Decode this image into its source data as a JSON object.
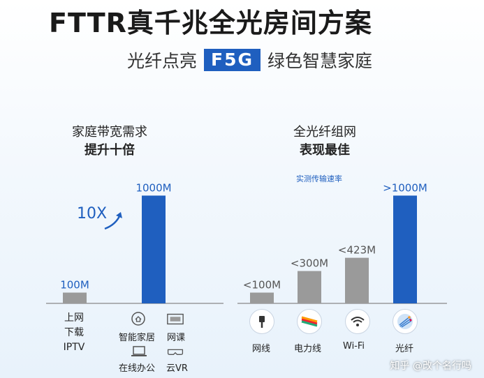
{
  "title": "FTTR真千兆全光房间方案",
  "subtitle": {
    "before": "光纤点亮",
    "badge": "F5G",
    "after": "绿色智慧家庭"
  },
  "colors": {
    "bar_gray": "#9a9a9a",
    "bar_blue": "#1f5fbf",
    "label_blue": "#1f5fbf",
    "axis": "#888888"
  },
  "chart_data": [
    {
      "type": "bar",
      "title": "家庭带宽需求",
      "subtitle": "提升十倍",
      "categories": [
        "上网 下载 IPTV",
        "智能家居 网课 在线办公 云VR"
      ],
      "values": [
        100,
        1000
      ],
      "value_labels": [
        "100M",
        "1000M"
      ],
      "unit": "Mbps",
      "annotation": "10X",
      "ylim": [
        0,
        1100
      ],
      "grid": false
    },
    {
      "type": "bar",
      "title": "全光纤组网",
      "subtitle": "表现最佳",
      "note": "实测传输速率",
      "categories": [
        "网线",
        "电力线",
        "Wi-Fi",
        "光纤"
      ],
      "values": [
        100,
        300,
        423,
        1000
      ],
      "value_labels": [
        "<100M",
        "<300M",
        "<423M",
        ">1000M"
      ],
      "unit": "Mbps",
      "ylim": [
        0,
        1100
      ],
      "grid": false
    }
  ],
  "left_categories": {
    "a": {
      "line1": "上网",
      "line2": "下载",
      "line3": "IPTV"
    },
    "b": {
      "icons": [
        {
          "icon": "smart-home-icon",
          "label": "智能家居"
        },
        {
          "icon": "online-class-icon",
          "label": "网课"
        },
        {
          "icon": "laptop-icon",
          "label": "在线办公"
        },
        {
          "icon": "vr-glasses-icon",
          "label": "云VR"
        }
      ]
    }
  },
  "right_icons": [
    "ethernet-cable-icon",
    "power-line-icon",
    "wifi-icon",
    "fiber-icon"
  ],
  "watermark": "知乎 @改个名行吗"
}
